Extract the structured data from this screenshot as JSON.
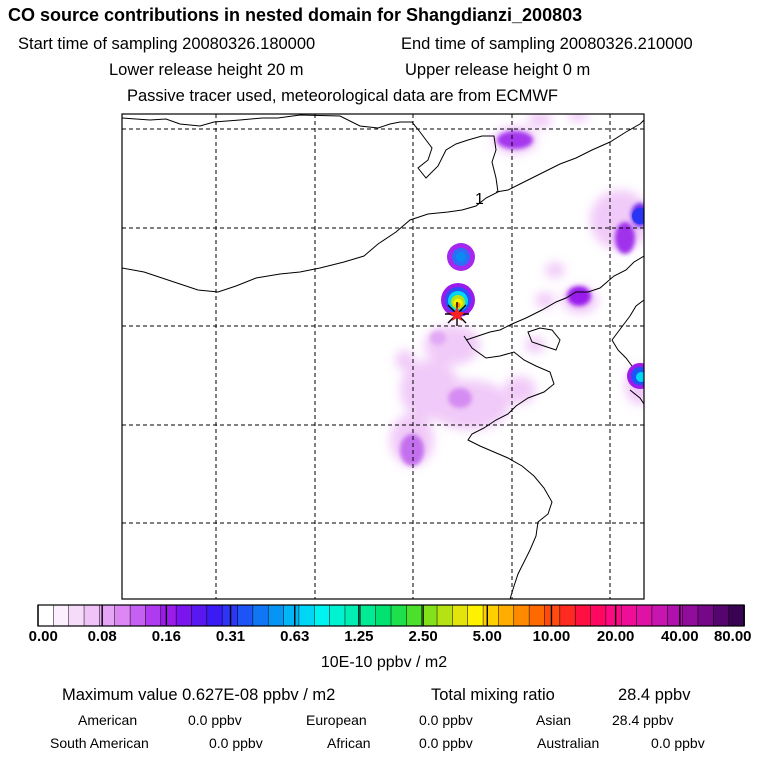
{
  "title": "CO  source contributions in nested domain for Shangdianzi_200803",
  "sampling": {
    "start_label": "Start time of sampling 20080326.180000",
    "end_label": "End time of sampling 20080326.210000"
  },
  "release": {
    "lower_label": "Lower release height   20 m",
    "upper_label": "Upper release height    0 m"
  },
  "tracer_note": "Passive tracer used, meteorological data are from ECMWF",
  "map": {
    "contour_label": "1",
    "receptor_marker": "star-receptor"
  },
  "colorbar": {
    "tick_labels": [
      "0.00",
      "0.08",
      "0.16",
      "0.31",
      "0.63",
      "1.25",
      "2.50",
      "5.00",
      "10.00",
      "20.00",
      "40.00",
      "80.00"
    ],
    "colors": [
      "#ffffff",
      "#fbeefd",
      "#f7dbfb",
      "#efc3f8",
      "#e7a5f6",
      "#dc87f4",
      "#c660f2",
      "#b03aef",
      "#9a1bec",
      "#7b14ee",
      "#5a18f0",
      "#3a1bf4",
      "#2d35f6",
      "#1d54f6",
      "#0f76f5",
      "#0596f5",
      "#00b6f7",
      "#00d6f6",
      "#00f4ef",
      "#00f2d1",
      "#00eeb2",
      "#00ea93",
      "#00e370",
      "#1de04c",
      "#4be02c",
      "#82e11b",
      "#b5e212",
      "#e3e40b",
      "#fff200",
      "#ffd000",
      "#ffad00",
      "#ff8a00",
      "#ff6a00",
      "#ff4a10",
      "#ff2a20",
      "#ff1040",
      "#ff0860",
      "#fb0a84",
      "#ef0e98",
      "#df12a6",
      "#c915b0",
      "#b011ad",
      "#920c9c",
      "#740887",
      "#56046e",
      "#3a0252"
    ],
    "unit": "10E-10 ppbv / m2"
  },
  "summary": {
    "max_label": "Maximum value  0.627E-08 ppbv / m2",
    "total_label": "Total mixing ratio",
    "total_value": "28.4 ppbv"
  },
  "regions": [
    {
      "name": "American",
      "value": "0.0 ppbv"
    },
    {
      "name": "European",
      "value": "0.0 ppbv"
    },
    {
      "name": "Asian",
      "value": "28.4 ppbv"
    },
    {
      "name": "South American",
      "value": "0.0 ppbv"
    },
    {
      "name": "African",
      "value": "0.0 ppbv"
    },
    {
      "name": "Australian",
      "value": "0.0 ppbv"
    }
  ]
}
